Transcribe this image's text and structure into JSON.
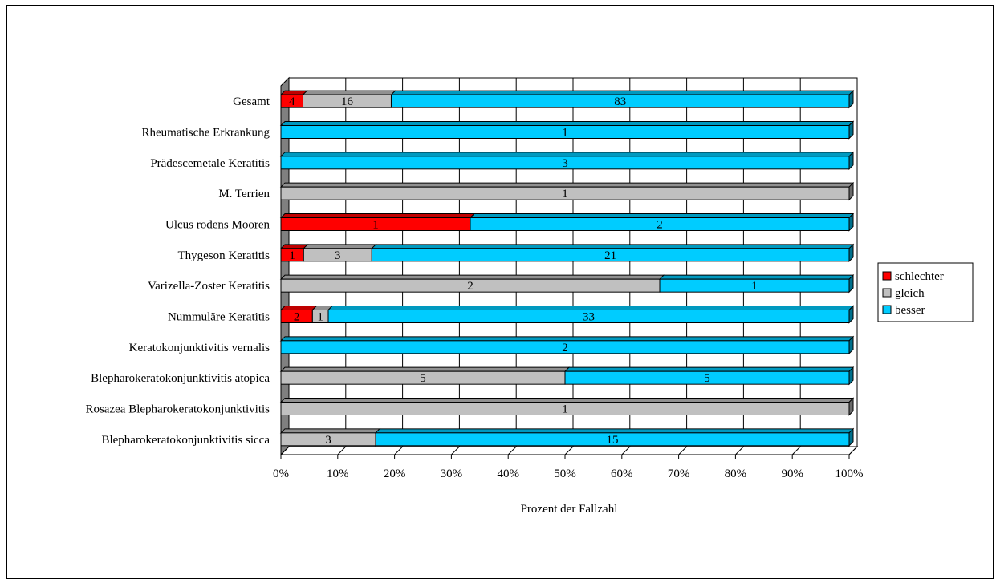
{
  "chart_data": {
    "type": "bar",
    "orientation": "horizontal",
    "stacked": "percent",
    "title": "",
    "xlabel": "Prozent der Fallzahl",
    "ylabel": "",
    "xlim": [
      0,
      100
    ],
    "x_ticks": [
      "0%",
      "10%",
      "20%",
      "30%",
      "40%",
      "50%",
      "60%",
      "70%",
      "80%",
      "90%",
      "100%"
    ],
    "grid": "vertical",
    "legend_position": "right",
    "categories": [
      "Gesamt",
      "Rheumatische Erkrankung",
      "Prädescemetale Keratitis",
      "M. Terrien",
      "Ulcus rodens Mooren",
      "Thygeson Keratitis",
      "Varizella-Zoster Keratitis",
      "Nummuläre Keratitis",
      "Keratokonjunktivitis vernalis",
      "Blepharokeratokonjunktivitis atopica",
      "Rosazea Blepharokeratokonjunktivitis",
      "Blepharokeratokonjunktivitis sicca"
    ],
    "series": [
      {
        "name": "schlechter",
        "color": "#ff0000",
        "values": [
          4,
          0,
          0,
          0,
          1,
          1,
          0,
          2,
          0,
          0,
          0,
          0
        ]
      },
      {
        "name": "gleich",
        "color": "#c0c0c0",
        "values": [
          16,
          0,
          0,
          1,
          0,
          3,
          2,
          1,
          0,
          5,
          1,
          3
        ]
      },
      {
        "name": "besser",
        "color": "#00ccff",
        "values": [
          83,
          1,
          3,
          0,
          2,
          21,
          1,
          33,
          2,
          5,
          0,
          15
        ]
      }
    ]
  }
}
